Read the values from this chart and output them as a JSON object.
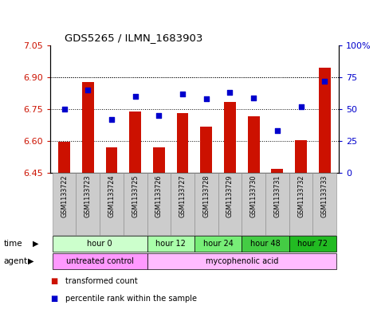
{
  "title": "GDS5265 / ILMN_1683903",
  "samples": [
    "GSM1133722",
    "GSM1133723",
    "GSM1133724",
    "GSM1133725",
    "GSM1133726",
    "GSM1133727",
    "GSM1133728",
    "GSM1133729",
    "GSM1133730",
    "GSM1133731",
    "GSM1133732",
    "GSM1133733"
  ],
  "bar_values": [
    6.595,
    6.878,
    6.572,
    6.74,
    6.572,
    6.73,
    6.668,
    6.785,
    6.718,
    6.468,
    6.605,
    6.945
  ],
  "scatter_values": [
    50,
    65,
    42,
    60,
    45,
    62,
    58,
    63,
    59,
    33,
    52,
    72
  ],
  "ylim_left": [
    6.45,
    7.05
  ],
  "ylim_right": [
    0,
    100
  ],
  "yticks_left": [
    6.45,
    6.6,
    6.75,
    6.9,
    7.05
  ],
  "yticks_right": [
    0,
    25,
    50,
    75,
    100
  ],
  "bar_color": "#cc1100",
  "scatter_color": "#0000cc",
  "bar_bottom": 6.45,
  "time_groups": [
    {
      "label": "hour 0",
      "start": 0,
      "end": 3,
      "color": "#ccffcc"
    },
    {
      "label": "hour 12",
      "start": 4,
      "end": 5,
      "color": "#aaffaa"
    },
    {
      "label": "hour 24",
      "start": 6,
      "end": 7,
      "color": "#77ee77"
    },
    {
      "label": "hour 48",
      "start": 8,
      "end": 9,
      "color": "#44cc44"
    },
    {
      "label": "hour 72",
      "start": 10,
      "end": 11,
      "color": "#22bb22"
    }
  ],
  "agent_groups": [
    {
      "label": "untreated control",
      "start": 0,
      "end": 3,
      "color": "#ff99ff"
    },
    {
      "label": "mycophenolic acid",
      "start": 4,
      "end": 11,
      "color": "#ffbbff"
    }
  ],
  "legend_items": [
    {
      "label": "transformed count",
      "color": "#cc1100"
    },
    {
      "label": "percentile rank within the sample",
      "color": "#0000cc"
    }
  ],
  "left_tick_color": "#cc1100",
  "right_tick_color": "#0000cc",
  "sample_box_color": "#cccccc",
  "figsize": [
    4.83,
    3.93
  ],
  "dpi": 100
}
